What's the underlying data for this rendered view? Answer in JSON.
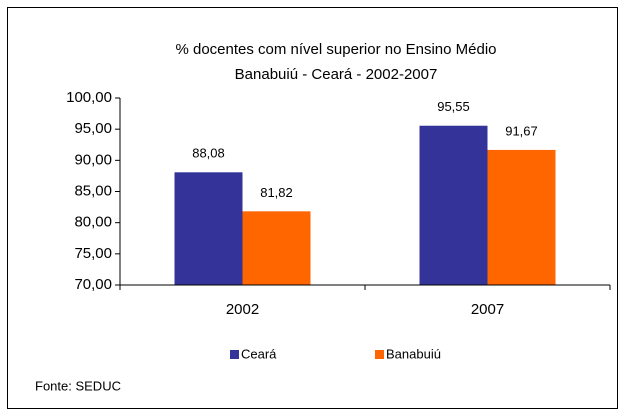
{
  "chart_data": {
    "type": "bar",
    "title": "% docentes com nível superior no Ensino Médio",
    "subtitle": "Banabuiú - Ceará - 2002-2007",
    "categories": [
      "2002",
      "2007"
    ],
    "series": [
      {
        "name": "Ceará",
        "color": "#333399",
        "values": [
          88.08,
          95.55
        ],
        "value_labels": [
          "88,08",
          "95,55"
        ]
      },
      {
        "name": "Banabuiú",
        "color": "#ff6600",
        "values": [
          81.82,
          91.67
        ],
        "value_labels": [
          "81,82",
          "91,67"
        ]
      }
    ],
    "ylim": [
      70,
      100
    ],
    "yticks": [
      {
        "value": 70,
        "label": "70,00"
      },
      {
        "value": 75,
        "label": "75,00"
      },
      {
        "value": 80,
        "label": "80,00"
      },
      {
        "value": 85,
        "label": "85,00"
      },
      {
        "value": 90,
        "label": "90,00"
      },
      {
        "value": 95,
        "label": "95,00"
      },
      {
        "value": 100,
        "label": "100,00"
      }
    ],
    "grid": false,
    "legend": "bottom",
    "source": "Fonte: SEDUC"
  }
}
